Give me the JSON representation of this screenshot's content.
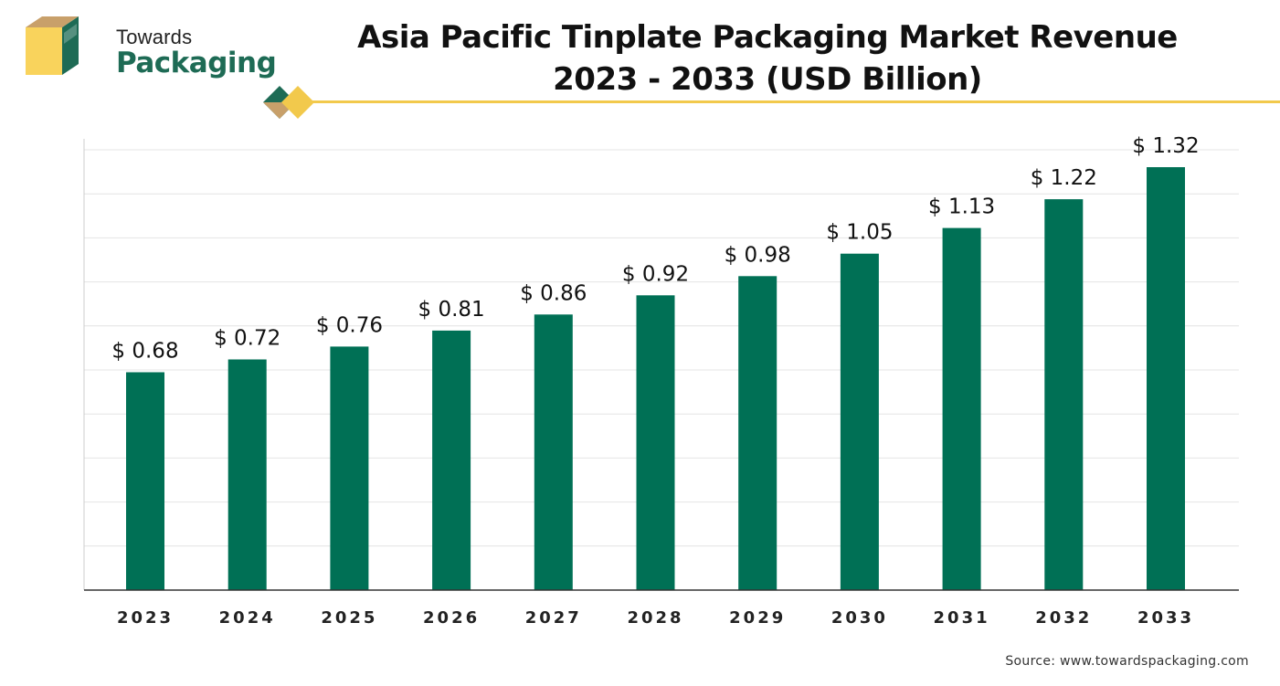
{
  "logo": {
    "line1": "Towards",
    "line2": "Packaging"
  },
  "title_lines": [
    "Asia Pacific Tinplate Packaging Market Revenue",
    "2023 - 2033 (USD Billion)"
  ],
  "source": "Source: www.towardspackaging.com",
  "colors": {
    "bar": "#007055",
    "accent_yellow": "#f2c94c",
    "logo_tan": "#c8a06a",
    "logo_yellow": "#f9d35c",
    "logo_green": "#1e6b55",
    "gridline": "#e4e4e4",
    "axis": "#333333"
  },
  "chart_data": {
    "type": "bar",
    "title": "Asia Pacific Tinplate Packaging Market Revenue 2023 - 2033 (USD Billion)",
    "xlabel": "",
    "ylabel": "",
    "categories": [
      "2023",
      "2024",
      "2025",
      "2026",
      "2027",
      "2028",
      "2029",
      "2030",
      "2031",
      "2032",
      "2033"
    ],
    "values": [
      0.68,
      0.72,
      0.76,
      0.81,
      0.86,
      0.92,
      0.98,
      1.05,
      1.13,
      1.22,
      1.32
    ],
    "value_labels": [
      "$ 0.68",
      "$ 0.72",
      "$ 0.76",
      "$ 0.81",
      "$ 0.86",
      "$ 0.92",
      "$ 0.98",
      "$ 1.05",
      "$ 1.13",
      "$ 1.22",
      "$ 1.32"
    ],
    "ylim": [
      0,
      1.4
    ],
    "grid": true,
    "legend": "none"
  }
}
